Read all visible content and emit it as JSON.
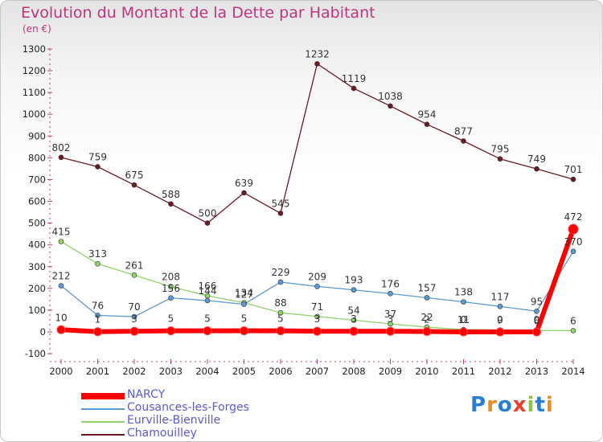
{
  "title": "Evolution du Montant de la Dette par Habitant",
  "subtitle": "(en €)",
  "logo": {
    "text": "Proxiti",
    "colors": [
      "#2a7fd4",
      "#f08a1c",
      "#2a7fd4",
      "#e8402a",
      "#8cc63f",
      "#2a7fd4",
      "#f08a1c"
    ]
  },
  "chart_data": {
    "type": "line",
    "x": [
      "2000",
      "2001",
      "2002",
      "2003",
      "2004",
      "2005",
      "2006",
      "2007",
      "2008",
      "2009",
      "2010",
      "2011",
      "2012",
      "2013",
      "2014"
    ],
    "ylim": [
      -100,
      1300
    ],
    "yticks": [
      "-100",
      "0",
      "100",
      "200",
      "300",
      "400",
      "500",
      "600",
      "700",
      "800",
      "900",
      "1000",
      "1100",
      "1200",
      "1300"
    ],
    "grid": false,
    "legend_position": "bottom-left",
    "series": [
      {
        "name": "Chamouilley",
        "color": "#6b1a22",
        "width": 1.3,
        "values": [
          802,
          759,
          675,
          588,
          500,
          639,
          545,
          1232,
          1119,
          1038,
          954,
          877,
          795,
          749,
          701
        ],
        "labels": [
          "802",
          "759",
          "675",
          "588",
          "500",
          "639",
          "545",
          "1232",
          "1119",
          "1038",
          "954",
          "877",
          "795",
          "749",
          "701"
        ]
      },
      {
        "name": "Eurville-Bienville",
        "color": "#8fd36a",
        "width": 1.3,
        "values": [
          415,
          313,
          261,
          208,
          166,
          134,
          88,
          71,
          54,
          37,
          22,
          11,
          9,
          6,
          6
        ],
        "labels": [
          "415",
          "313",
          "261",
          "208",
          "166",
          "134",
          "88",
          "71",
          "54",
          "37",
          "22",
          "11",
          "9",
          "6",
          "6"
        ]
      },
      {
        "name": "Cousances-les-Forges",
        "color": "#5a9bd5",
        "width": 1.3,
        "values": [
          212,
          76,
          70,
          156,
          144,
          127,
          229,
          209,
          193,
          176,
          157,
          138,
          117,
          95,
          370
        ],
        "labels": [
          "212",
          "76",
          "70",
          "156",
          "144",
          "127",
          "229",
          "209",
          "193",
          "176",
          "157",
          "138",
          "117",
          "95",
          "370"
        ]
      },
      {
        "name": "NARCY",
        "color": "#ff0000",
        "width": 6,
        "values": [
          10,
          1,
          3,
          5,
          5,
          5,
          5,
          3,
          3,
          3,
          2,
          0,
          0,
          0,
          472
        ],
        "labels": [
          "10",
          "1",
          "3",
          "5",
          "5",
          "5",
          "5",
          "3",
          "3",
          "3",
          "2",
          "0",
          "0",
          "0",
          "472"
        ]
      }
    ]
  },
  "legend": [
    {
      "name": "NARCY",
      "color": "#ff0000",
      "thick": 8
    },
    {
      "name": "Cousances-les-Forges",
      "color": "#5a9bd5",
      "thick": 2
    },
    {
      "name": "Eurville-Bienville",
      "color": "#8fd36a",
      "thick": 2
    },
    {
      "name": "Chamouilley",
      "color": "#6b1a22",
      "thick": 2
    }
  ]
}
